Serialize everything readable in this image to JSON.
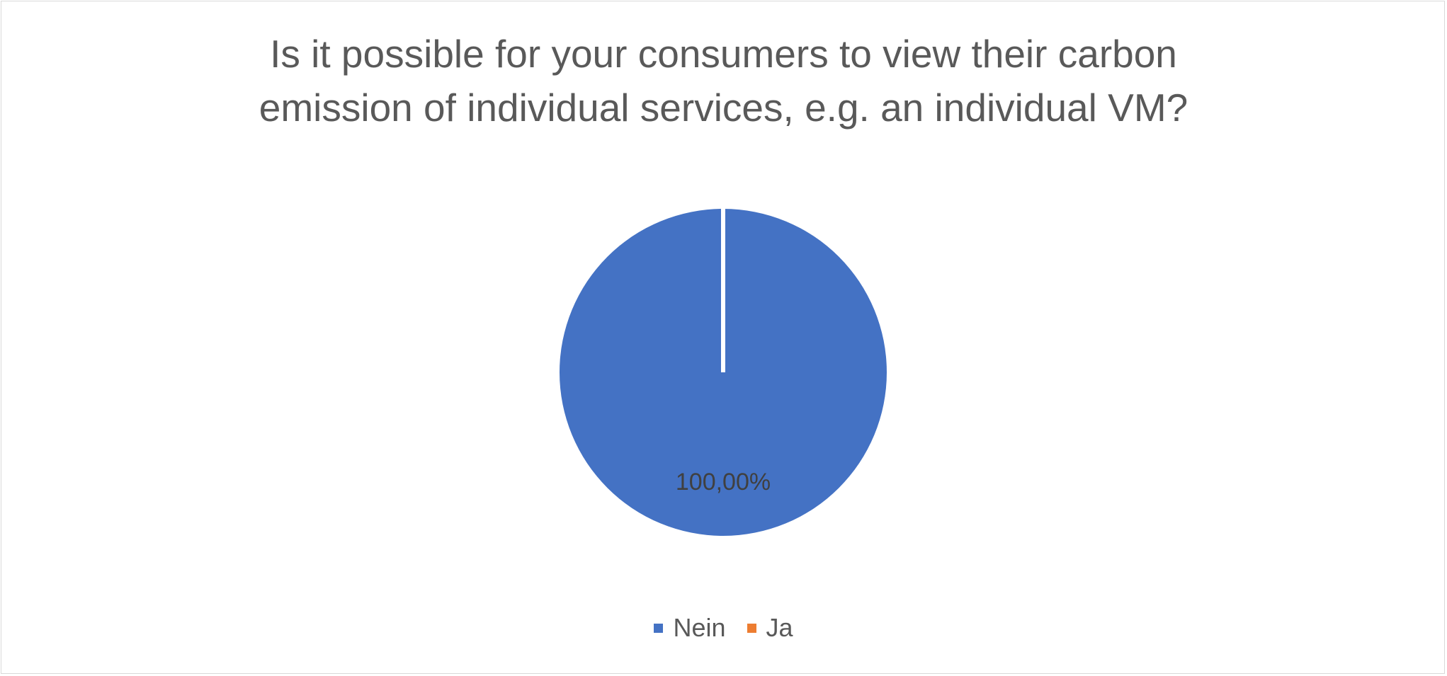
{
  "chart_data": {
    "type": "pie",
    "title_lines": [
      "Is it possible for your consumers to view their carbon",
      "emission of individual services, e.g. an individual VM?"
    ],
    "categories": [
      "Nein",
      "Ja"
    ],
    "values": [
      100,
      0
    ],
    "data_labels": [
      "100,00%"
    ],
    "colors": [
      "#4472C4",
      "#ED7D31"
    ],
    "legend_position": "bottom",
    "start_angle_deg": 0
  }
}
